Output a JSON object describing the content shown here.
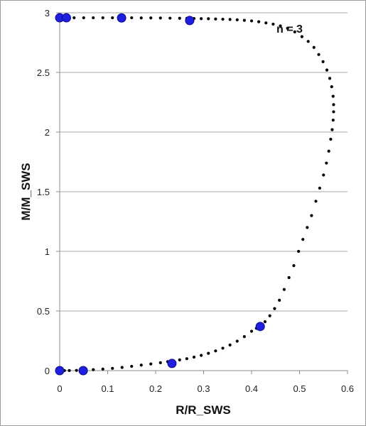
{
  "chart_data": {
    "type": "scatter",
    "xlabel": "R/R_SWS",
    "ylabel": "M/M_SWS",
    "annotation": "n = 3",
    "xlim": [
      0,
      0.6
    ],
    "ylim": [
      0,
      3
    ],
    "x_ticks": [
      "0",
      "0.1",
      "0.2",
      "0.3",
      "0.4",
      "0.5",
      "0.6"
    ],
    "y_ticks": [
      "0",
      "0.5",
      "1",
      "1.5",
      "2",
      "2.5",
      "3"
    ],
    "grid": "horizontal",
    "series": [
      {
        "color": "#000000",
        "marker": "small-dot",
        "x": [
          0.0,
          0.01,
          0.02,
          0.035,
          0.05,
          0.07,
          0.09,
          0.11,
          0.13,
          0.15,
          0.17,
          0.19,
          0.21,
          0.225,
          0.235,
          0.25,
          0.265,
          0.28,
          0.295,
          0.31,
          0.325,
          0.34,
          0.355,
          0.37,
          0.385,
          0.4,
          0.41,
          0.418,
          0.428,
          0.438,
          0.448,
          0.458,
          0.468,
          0.478,
          0.488,
          0.498,
          0.507,
          0.516,
          0.525,
          0.534,
          0.542,
          0.55,
          0.556,
          0.561,
          0.565,
          0.568,
          0.57,
          0.571,
          0.571,
          0.57,
          0.567,
          0.563,
          0.557,
          0.549,
          0.54,
          0.53,
          0.518,
          0.505,
          0.49,
          0.475,
          0.46,
          0.445,
          0.43,
          0.415,
          0.4,
          0.385,
          0.37,
          0.355,
          0.34,
          0.325,
          0.31,
          0.295,
          0.28,
          0.265,
          0.25,
          0.23,
          0.21,
          0.19,
          0.17,
          0.15,
          0.13,
          0.11,
          0.09,
          0.07,
          0.05,
          0.03,
          0.015,
          0.0
        ],
        "y": [
          0.0,
          0.0003,
          0.001,
          0.002,
          0.004,
          0.008,
          0.013,
          0.019,
          0.027,
          0.036,
          0.046,
          0.056,
          0.066,
          0.075,
          0.08,
          0.09,
          0.1,
          0.113,
          0.128,
          0.145,
          0.165,
          0.188,
          0.215,
          0.247,
          0.285,
          0.33,
          0.355,
          0.37,
          0.41,
          0.46,
          0.52,
          0.59,
          0.68,
          0.78,
          0.88,
          1.0,
          1.1,
          1.2,
          1.3,
          1.42,
          1.53,
          1.64,
          1.74,
          1.84,
          1.94,
          2.02,
          2.1,
          2.17,
          2.23,
          2.3,
          2.38,
          2.45,
          2.52,
          2.59,
          2.65,
          2.71,
          2.76,
          2.8,
          2.84,
          2.87,
          2.89,
          2.905,
          2.915,
          2.925,
          2.932,
          2.937,
          2.941,
          2.944,
          2.946,
          2.948,
          2.95,
          2.951,
          2.952,
          2.953,
          2.954,
          2.955,
          2.956,
          2.957,
          2.957,
          2.958,
          2.958,
          2.958,
          2.958,
          2.958,
          2.958,
          2.958,
          2.958,
          2.958
        ]
      },
      {
        "color": "#1f1fe0",
        "marker": "large-dot",
        "x": [
          0.0,
          0.049,
          0.234,
          0.418,
          0.0,
          0.014,
          0.129,
          0.271
        ],
        "y": [
          0.0,
          0.0,
          0.06,
          0.37,
          2.958,
          2.958,
          2.957,
          2.935
        ]
      }
    ]
  }
}
